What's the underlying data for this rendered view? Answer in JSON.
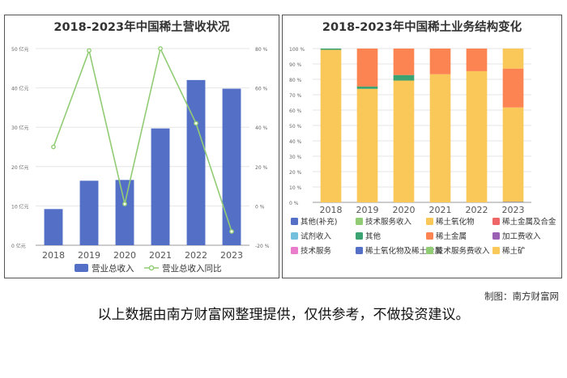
{
  "credit": "制图：南方财富网",
  "disclaimer": "以上数据由南方财富网整理提供，仅供参考，不做投资建议。",
  "chart_data": [
    {
      "type": "bar",
      "title": "2018-2023年中国稀土营收状况",
      "categories": [
        "2018",
        "2019",
        "2020",
        "2021",
        "2022",
        "2023"
      ],
      "series": [
        {
          "name": "营业总收入",
          "type": "bar",
          "axis": "left",
          "color": "#5470c6",
          "values": [
            9.2,
            16.4,
            16.6,
            29.7,
            42.0,
            39.8
          ]
        },
        {
          "name": "营业总收入同比",
          "type": "line",
          "axis": "right",
          "color": "#91cc75",
          "values": [
            30,
            79,
            1,
            80,
            42,
            -13
          ]
        }
      ],
      "y_left": {
        "min": 0,
        "max": 50,
        "ticks": [
          "0 亿元",
          "10 亿元",
          "20 亿元",
          "30 亿元",
          "40 亿元",
          "50 亿元"
        ]
      },
      "y_right": {
        "min": -20,
        "max": 80,
        "ticks": [
          "-20 %",
          "0 %",
          "20 %",
          "40 %",
          "60 %",
          "80 %"
        ]
      },
      "legend": [
        "营业总收入",
        "营业总收入同比"
      ],
      "legend_position": "bottom"
    },
    {
      "type": "bar",
      "stacked": true,
      "title": "2018-2023年中国稀土业务结构变化",
      "categories": [
        "2018",
        "2019",
        "2020",
        "2021",
        "2022",
        "2023"
      ],
      "y_axis": {
        "min": 0,
        "max": 100,
        "ticks": [
          "0 %",
          "10 %",
          "20 %",
          "30 %",
          "40 %",
          "50 %",
          "60 %",
          "70 %",
          "80 %",
          "90 %",
          "100 %"
        ]
      },
      "series": [
        {
          "name": "其他(补充)",
          "color": "#5470c6",
          "values": [
            0,
            0,
            0,
            0,
            0,
            0.3
          ]
        },
        {
          "name": "技术服务收入",
          "color": "#91cc75",
          "values": [
            0,
            0,
            0,
            0,
            0,
            0
          ]
        },
        {
          "name": "稀土氧化物",
          "color": "#fac858",
          "values": [
            99.2,
            73.8,
            79.2,
            83.3,
            85.3,
            61.4
          ]
        },
        {
          "name": "稀土金属及合金",
          "color": "#ee6666",
          "values": [
            0,
            0,
            0,
            0,
            0,
            0
          ]
        },
        {
          "name": "试剂收入",
          "color": "#73c0de",
          "values": [
            0,
            0,
            0,
            0,
            0,
            0
          ]
        },
        {
          "name": "其他",
          "color": "#3ba272",
          "values": [
            0.8,
            1.5,
            3.6,
            0,
            0,
            0
          ]
        },
        {
          "name": "稀土金属",
          "color": "#fc8452",
          "values": [
            0,
            24.7,
            17.2,
            16.7,
            14.7,
            25.3
          ]
        },
        {
          "name": "加工费收入",
          "color": "#9a60b4",
          "values": [
            0,
            0,
            0,
            0,
            0,
            0
          ]
        },
        {
          "name": "技术服务",
          "color": "#ea7ccc",
          "values": [
            0,
            0,
            0,
            0,
            0,
            0
          ]
        },
        {
          "name": "稀土氧化物及稀土金属",
          "color": "#5470c6",
          "values": [
            0,
            0,
            0,
            0,
            0,
            0
          ]
        },
        {
          "name": "技术服务费收入",
          "color": "#91cc75",
          "values": [
            0,
            0,
            0,
            0,
            0,
            0
          ]
        },
        {
          "name": "稀土矿",
          "color": "#fac858",
          "values": [
            0,
            0,
            0,
            0,
            0,
            13.0
          ]
        }
      ],
      "legend_position": "bottom"
    }
  ]
}
